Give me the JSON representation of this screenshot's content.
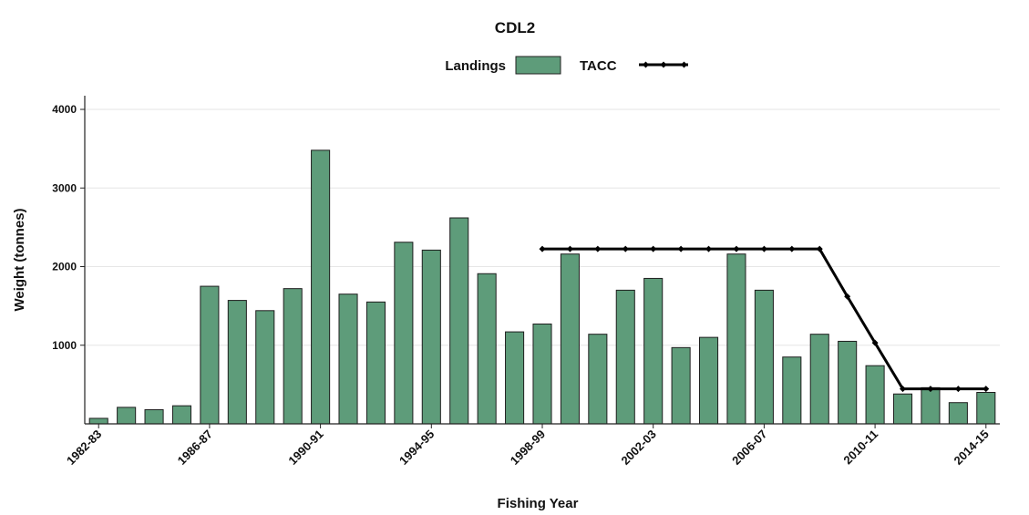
{
  "chart_data": {
    "type": "bar",
    "title": "CDL2",
    "xlabel": "Fishing Year",
    "ylabel": "Weight (tonnes)",
    "ylim": [
      0,
      4200
    ],
    "yticks": [
      1000,
      2000,
      3000,
      4000
    ],
    "grid": true,
    "legend_position": "top",
    "categories": [
      "1982-83",
      "1983-84",
      "1984-85",
      "1985-86",
      "1986-87",
      "1987-88",
      "1988-89",
      "1989-90",
      "1990-91",
      "1991-92",
      "1992-93",
      "1993-94",
      "1994-95",
      "1995-96",
      "1996-97",
      "1997-98",
      "1998-99",
      "1999-00",
      "2000-01",
      "2001-02",
      "2002-03",
      "2003-04",
      "2004-05",
      "2005-06",
      "2006-07",
      "2007-08",
      "2008-09",
      "2009-10",
      "2010-11",
      "2011-12",
      "2012-13",
      "2013-14",
      "2014-15"
    ],
    "xtick_labels": [
      "1982-83",
      "1986-87",
      "1990-91",
      "1994-95",
      "1998-99",
      "2002-03",
      "2006-07",
      "2010-11",
      "2014-15"
    ],
    "series": [
      {
        "name": "Landings",
        "kind": "bar",
        "color": "#5e9c7a",
        "values": [
          70,
          210,
          180,
          230,
          1750,
          1570,
          1440,
          1720,
          3480,
          1650,
          1550,
          2310,
          2210,
          2620,
          1910,
          1170,
          1270,
          2160,
          1140,
          1700,
          1850,
          970,
          1100,
          2160,
          1700,
          850,
          1140,
          1050,
          740,
          380,
          460,
          270,
          400
        ]
      },
      {
        "name": "TACC",
        "kind": "line",
        "color": "#000000",
        "values": [
          null,
          null,
          null,
          null,
          null,
          null,
          null,
          null,
          null,
          null,
          null,
          null,
          null,
          null,
          null,
          null,
          2225,
          2225,
          2225,
          2225,
          2225,
          2225,
          2225,
          2225,
          2225,
          2225,
          2225,
          1620,
          1030,
          445,
          445,
          445,
          445
        ]
      }
    ]
  }
}
